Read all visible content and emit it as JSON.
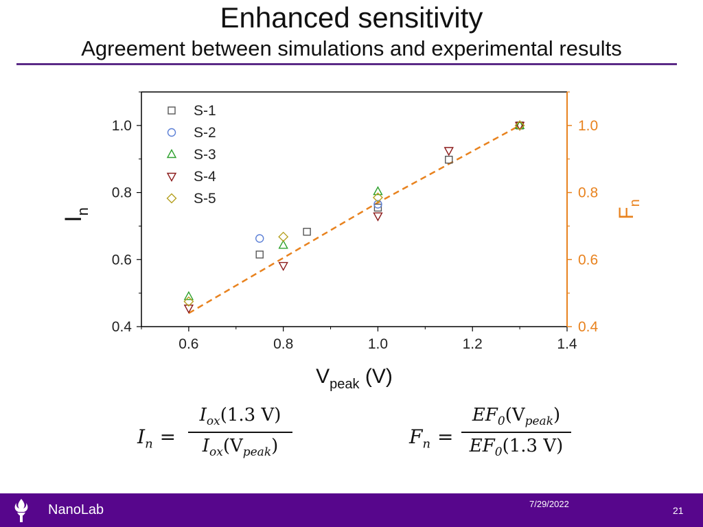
{
  "slide": {
    "title": "Enhanced sensitivity",
    "subtitle": "Agreement between simulations and experimental results",
    "footer_brand": "NanoLab",
    "footer_date": "7/29/2022",
    "page_number": "21"
  },
  "equations": {
    "in": {
      "lhs_var": "I",
      "lhs_sub": "n",
      "num": "I",
      "num_sub": "ox",
      "num_arg": "(1.3 V)",
      "den": "I",
      "den_sub": "ox",
      "den_arg_open": "(V",
      "den_arg_sub": "peak",
      "den_arg_close": ")"
    },
    "fn": {
      "lhs_var": "F",
      "lhs_sub": "n",
      "num": "EF",
      "num_sub": "0",
      "num_arg_open": "(V",
      "num_arg_sub": "peak",
      "num_arg_close": ")",
      "den": "EF",
      "den_sub": "0",
      "den_arg": "(1.3 V)"
    }
  },
  "chart_data": {
    "type": "scatter",
    "xlabel": "V",
    "xlabel_sub": "peak",
    "xlabel_unit": " (V)",
    "ylabel": "I",
    "ylabel_sub": "n",
    "y2label": "F",
    "y2label_sub": "n",
    "xlim": [
      0.5,
      1.4
    ],
    "ylim": [
      0.4,
      1.1
    ],
    "y2lim": [
      0.4,
      1.1
    ],
    "xticks": [
      "0.6",
      "0.8",
      "1.0",
      "1.2",
      "1.4"
    ],
    "yticks": [
      "0.4",
      "0.6",
      "0.8",
      "1.0"
    ],
    "y2ticks": [
      "0.4",
      "0.6",
      "0.8",
      "1.0"
    ],
    "right_axis_color": "#e8821e",
    "legend_position": "top-left",
    "series": [
      {
        "name": "S-1",
        "marker": "square",
        "color": "#555555",
        "points": [
          [
            0.75,
            0.615
          ],
          [
            0.85,
            0.683
          ],
          [
            1.0,
            0.755
          ],
          [
            1.15,
            0.898
          ],
          [
            1.3,
            1.0
          ]
        ]
      },
      {
        "name": "S-2",
        "marker": "circle",
        "color": "#5b7fd6",
        "points": [
          [
            0.75,
            0.663
          ],
          [
            1.0,
            0.765
          ]
        ]
      },
      {
        "name": "S-3",
        "marker": "triangle-up",
        "color": "#2ca02c",
        "points": [
          [
            0.6,
            0.49
          ],
          [
            0.8,
            0.643
          ],
          [
            1.0,
            0.803
          ],
          [
            1.3,
            1.0
          ]
        ]
      },
      {
        "name": "S-4",
        "marker": "triangle-down",
        "color": "#8b1a1a",
        "points": [
          [
            0.6,
            0.455
          ],
          [
            0.8,
            0.582
          ],
          [
            1.0,
            0.73
          ],
          [
            1.15,
            0.925
          ],
          [
            1.3,
            1.0
          ]
        ]
      },
      {
        "name": "S-5",
        "marker": "diamond",
        "color": "#b5a020",
        "points": [
          [
            0.6,
            0.475
          ],
          [
            0.8,
            0.668
          ],
          [
            1.0,
            0.785
          ],
          [
            1.3,
            1.0
          ]
        ]
      }
    ],
    "fit_line": {
      "axis": "right",
      "color": "#e8821e",
      "style": "dashed",
      "points": [
        [
          0.6,
          0.44
        ],
        [
          0.8,
          0.605
        ],
        [
          1.0,
          0.77
        ],
        [
          1.3,
          1.0
        ]
      ]
    }
  }
}
